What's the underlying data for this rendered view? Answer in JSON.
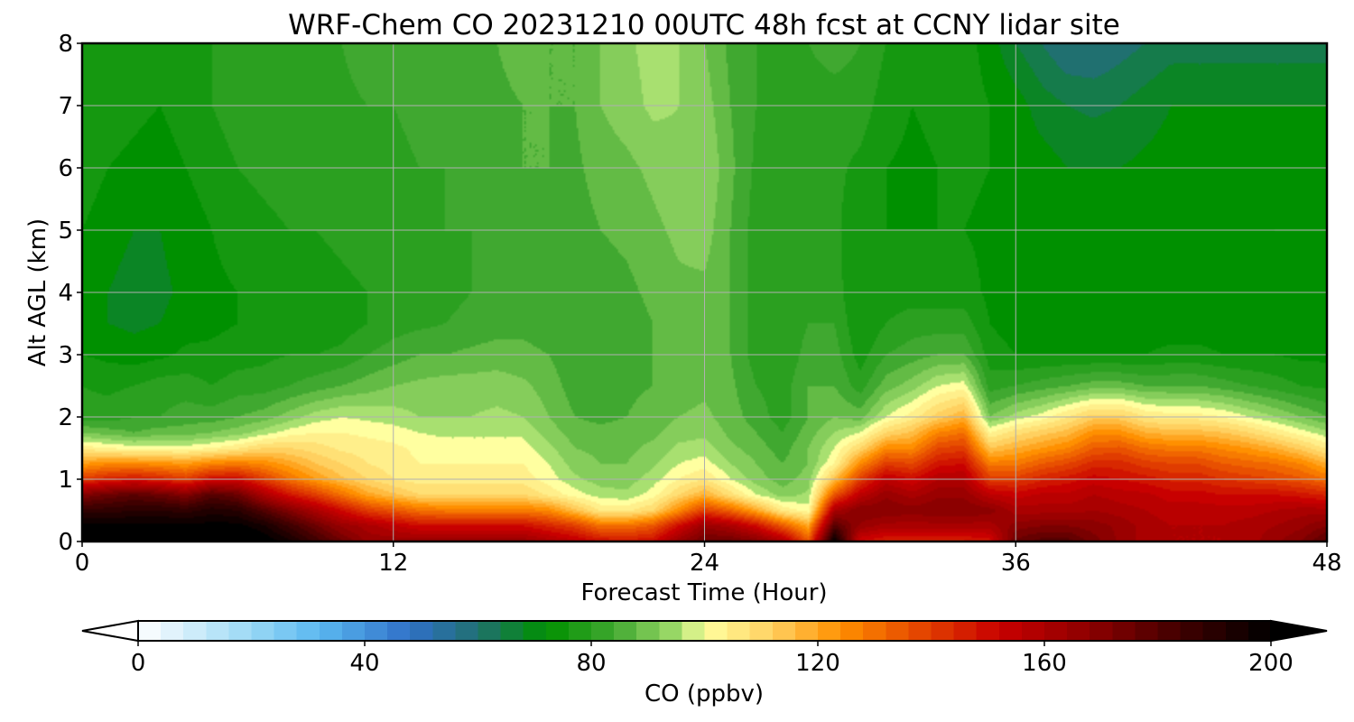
{
  "chart_data": {
    "type": "heatmap",
    "title": "WRF-Chem CO  20231210 00UTC 48h fcst at CCNY lidar site",
    "xlabel": "Forecast Time (Hour)",
    "ylabel": "Alt AGL (km)",
    "xlim": [
      0,
      48
    ],
    "ylim": [
      0,
      8
    ],
    "xticks": [
      0,
      12,
      24,
      36,
      48
    ],
    "yticks": [
      0,
      1,
      2,
      3,
      4,
      5,
      6,
      7,
      8
    ],
    "grid": true,
    "colorbar": {
      "label": "CO  (ppbv)",
      "vmin": 0,
      "vmax": 200,
      "ticks": [
        0,
        40,
        80,
        120,
        160,
        200
      ],
      "extend": "both",
      "colormap_stops": [
        {
          "value": 0,
          "color": "#ffffff"
        },
        {
          "value": 20,
          "color": "#9ad8f5"
        },
        {
          "value": 32,
          "color": "#5ab8f0"
        },
        {
          "value": 48,
          "color": "#3070c8"
        },
        {
          "value": 60,
          "color": "#207070"
        },
        {
          "value": 72,
          "color": "#009000"
        },
        {
          "value": 84,
          "color": "#40a830"
        },
        {
          "value": 96,
          "color": "#a8e070"
        },
        {
          "value": 100,
          "color": "#ffffa0"
        },
        {
          "value": 112,
          "color": "#ffd060"
        },
        {
          "value": 124,
          "color": "#ff9000"
        },
        {
          "value": 136,
          "color": "#e85000"
        },
        {
          "value": 152,
          "color": "#c80000"
        },
        {
          "value": 168,
          "color": "#8c0000"
        },
        {
          "value": 184,
          "color": "#400000"
        },
        {
          "value": 200,
          "color": "#000000"
        }
      ]
    },
    "x": [
      0,
      1,
      2,
      3,
      4,
      5,
      6,
      7,
      8,
      9,
      10,
      11,
      12,
      13,
      14,
      15,
      16,
      17,
      18,
      19,
      20,
      21,
      22,
      23,
      24,
      25,
      26,
      27,
      28,
      29,
      30,
      31,
      32,
      33,
      34,
      35,
      36,
      37,
      38,
      39,
      40,
      41,
      42,
      43,
      44,
      45,
      46,
      47,
      48
    ],
    "y": [
      0,
      0.25,
      0.5,
      0.75,
      1,
      1.25,
      1.5,
      1.75,
      2,
      2.5,
      3,
      3.5,
      4,
      5,
      6,
      7,
      8
    ],
    "z": [
      [
        205,
        205,
        205,
        205,
        205,
        205,
        205,
        202,
        195,
        185,
        175,
        165,
        165,
        165,
        165,
        165,
        165,
        165,
        160,
        155,
        150,
        148,
        150,
        165,
        175,
        175,
        170,
        160,
        135,
        200,
        150,
        145,
        145,
        145,
        145,
        148,
        175,
        180,
        180,
        172,
        165,
        160,
        158,
        158,
        158,
        160,
        165,
        170,
        180
      ],
      [
        200,
        200,
        200,
        200,
        200,
        200,
        200,
        195,
        185,
        175,
        165,
        160,
        155,
        150,
        150,
        150,
        150,
        150,
        145,
        140,
        130,
        130,
        135,
        150,
        165,
        160,
        150,
        135,
        120,
        180,
        165,
        160,
        160,
        160,
        160,
        160,
        168,
        170,
        170,
        168,
        165,
        160,
        158,
        158,
        158,
        160,
        162,
        165,
        170
      ],
      [
        188,
        188,
        190,
        190,
        188,
        192,
        190,
        180,
        170,
        160,
        150,
        140,
        135,
        130,
        128,
        128,
        128,
        128,
        125,
        115,
        105,
        105,
        110,
        125,
        140,
        132,
        120,
        105,
        100,
        160,
        170,
        170,
        168,
        170,
        170,
        168,
        160,
        160,
        160,
        162,
        160,
        158,
        156,
        156,
        156,
        156,
        158,
        160,
        160
      ],
      [
        170,
        175,
        178,
        175,
        170,
        180,
        175,
        160,
        148,
        140,
        130,
        120,
        115,
        110,
        110,
        110,
        110,
        110,
        105,
        100,
        96,
        95,
        100,
        110,
        118,
        108,
        98,
        92,
        95,
        135,
        155,
        165,
        160,
        165,
        165,
        155,
        152,
        155,
        155,
        158,
        156,
        155,
        152,
        152,
        150,
        150,
        150,
        148,
        145
      ],
      [
        140,
        145,
        148,
        145,
        140,
        150,
        150,
        140,
        130,
        122,
        115,
        110,
        106,
        104,
        104,
        104,
        104,
        104,
        100,
        95,
        92,
        92,
        96,
        102,
        106,
        98,
        92,
        88,
        92,
        115,
        140,
        155,
        150,
        158,
        158,
        140,
        140,
        145,
        148,
        152,
        150,
        148,
        145,
        145,
        142,
        140,
        138,
        135,
        130
      ],
      [
        122,
        125,
        125,
        124,
        122,
        126,
        128,
        125,
        120,
        114,
        110,
        106,
        104,
        102,
        102,
        102,
        102,
        102,
        98,
        92,
        90,
        90,
        93,
        98,
        100,
        94,
        90,
        86,
        90,
        102,
        125,
        140,
        138,
        148,
        150,
        128,
        128,
        134,
        138,
        144,
        144,
        140,
        138,
        138,
        134,
        132,
        130,
        126,
        118
      ],
      [
        104,
        102,
        100,
        100,
        100,
        102,
        105,
        110,
        110,
        108,
        105,
        104,
        103,
        101,
        100,
        100,
        100,
        100,
        95,
        90,
        89,
        89,
        91,
        95,
        96,
        91,
        88,
        84,
        90,
        98,
        110,
        125,
        125,
        138,
        140,
        114,
        118,
        122,
        126,
        134,
        135,
        130,
        128,
        128,
        125,
        122,
        118,
        112,
        105
      ],
      [
        90,
        88,
        86,
        88,
        88,
        90,
        92,
        96,
        100,
        102,
        102,
        101,
        100,
        98,
        97,
        97,
        97,
        97,
        92,
        88,
        87,
        88,
        89,
        92,
        93,
        89,
        86,
        82,
        88,
        94,
        98,
        110,
        115,
        126,
        130,
        102,
        108,
        112,
        116,
        124,
        124,
        118,
        116,
        116,
        114,
        110,
        105,
        100,
        95
      ],
      [
        80,
        80,
        82,
        82,
        84,
        84,
        86,
        88,
        92,
        96,
        98,
        97,
        96,
        94,
        94,
        94,
        95,
        94,
        90,
        86,
        85,
        86,
        88,
        90,
        91,
        88,
        84,
        80,
        86,
        90,
        88,
        98,
        104,
        112,
        118,
        90,
        96,
        100,
        106,
        112,
        112,
        106,
        104,
        104,
        102,
        98,
        94,
        90,
        86
      ],
      [
        78,
        77,
        78,
        80,
        80,
        78,
        80,
        80,
        82,
        84,
        86,
        88,
        90,
        91,
        92,
        92,
        92,
        91,
        88,
        84,
        84,
        85,
        86,
        88,
        89,
        87,
        82,
        80,
        86,
        86,
        80,
        88,
        92,
        98,
        100,
        80,
        82,
        84,
        86,
        88,
        88,
        86,
        86,
        86,
        84,
        82,
        80,
        78,
        77
      ],
      [
        74,
        73,
        72,
        73,
        75,
        75,
        76,
        77,
        78,
        78,
        79,
        82,
        84,
        86,
        86,
        87,
        88,
        87,
        86,
        83,
        84,
        84,
        86,
        88,
        88,
        86,
        80,
        78,
        84,
        84,
        76,
        82,
        84,
        86,
        86,
        76,
        74,
        74,
        74,
        74,
        74,
        74,
        75,
        75,
        74,
        74,
        74,
        73,
        73
      ],
      [
        72,
        70,
        69,
        70,
        72,
        73,
        74,
        75,
        75,
        75,
        76,
        78,
        80,
        81,
        82,
        83,
        84,
        85,
        84,
        82,
        83,
        84,
        86,
        88,
        88,
        86,
        80,
        78,
        82,
        82,
        74,
        78,
        80,
        80,
        80,
        74,
        72,
        72,
        72,
        72,
        72,
        72,
        72,
        72,
        72,
        72,
        72,
        72,
        72
      ],
      [
        72,
        70,
        68,
        69,
        71,
        73,
        74,
        75,
        75,
        76,
        77,
        78,
        79,
        80,
        81,
        82,
        83,
        84,
        84,
        82,
        84,
        85,
        87,
        89,
        89,
        86,
        80,
        78,
        80,
        80,
        74,
        76,
        76,
        76,
        76,
        73,
        72,
        72,
        72,
        72,
        72,
        72,
        72,
        72,
        72,
        72,
        72,
        72,
        72
      ],
      [
        74,
        72,
        70,
        70,
        72,
        74,
        76,
        77,
        78,
        78,
        79,
        80,
        80,
        81,
        82,
        82,
        84,
        85,
        85,
        84,
        86,
        87,
        89,
        91,
        92,
        86,
        80,
        78,
        79,
        79,
        75,
        74,
        74,
        74,
        74,
        73,
        72,
        72,
        72,
        72,
        72,
        72,
        72,
        72,
        73,
        73,
        74,
        74,
        74
      ],
      [
        76,
        74,
        73,
        72,
        74,
        76,
        78,
        79,
        80,
        80,
        80,
        81,
        81,
        82,
        82,
        83,
        84,
        86,
        86,
        85,
        88,
        89,
        91,
        93,
        94,
        87,
        81,
        79,
        79,
        79,
        77,
        74,
        73,
        74,
        75,
        74,
        73,
        72,
        70,
        70,
        70,
        71,
        72,
        72,
        72,
        72,
        72,
        72,
        74
      ],
      [
        77,
        76,
        75,
        74,
        76,
        78,
        80,
        80,
        80,
        80,
        81,
        82,
        82,
        83,
        83,
        84,
        85,
        86,
        86,
        86,
        90,
        92,
        95,
        94,
        92,
        86,
        82,
        80,
        80,
        80,
        80,
        76,
        74,
        75,
        76,
        74,
        72,
        68,
        66,
        65,
        66,
        68,
        70,
        70,
        70,
        70,
        70,
        70,
        70
      ],
      [
        76,
        77,
        78,
        77,
        76,
        78,
        80,
        79,
        79,
        80,
        82,
        84,
        83,
        82,
        82,
        84,
        86,
        88,
        86,
        86,
        90,
        93,
        96,
        94,
        90,
        85,
        82,
        80,
        82,
        84,
        82,
        78,
        76,
        76,
        76,
        72,
        66,
        62,
        58,
        58,
        60,
        62,
        64,
        64,
        64,
        64,
        64,
        64,
        64
      ]
    ]
  }
}
